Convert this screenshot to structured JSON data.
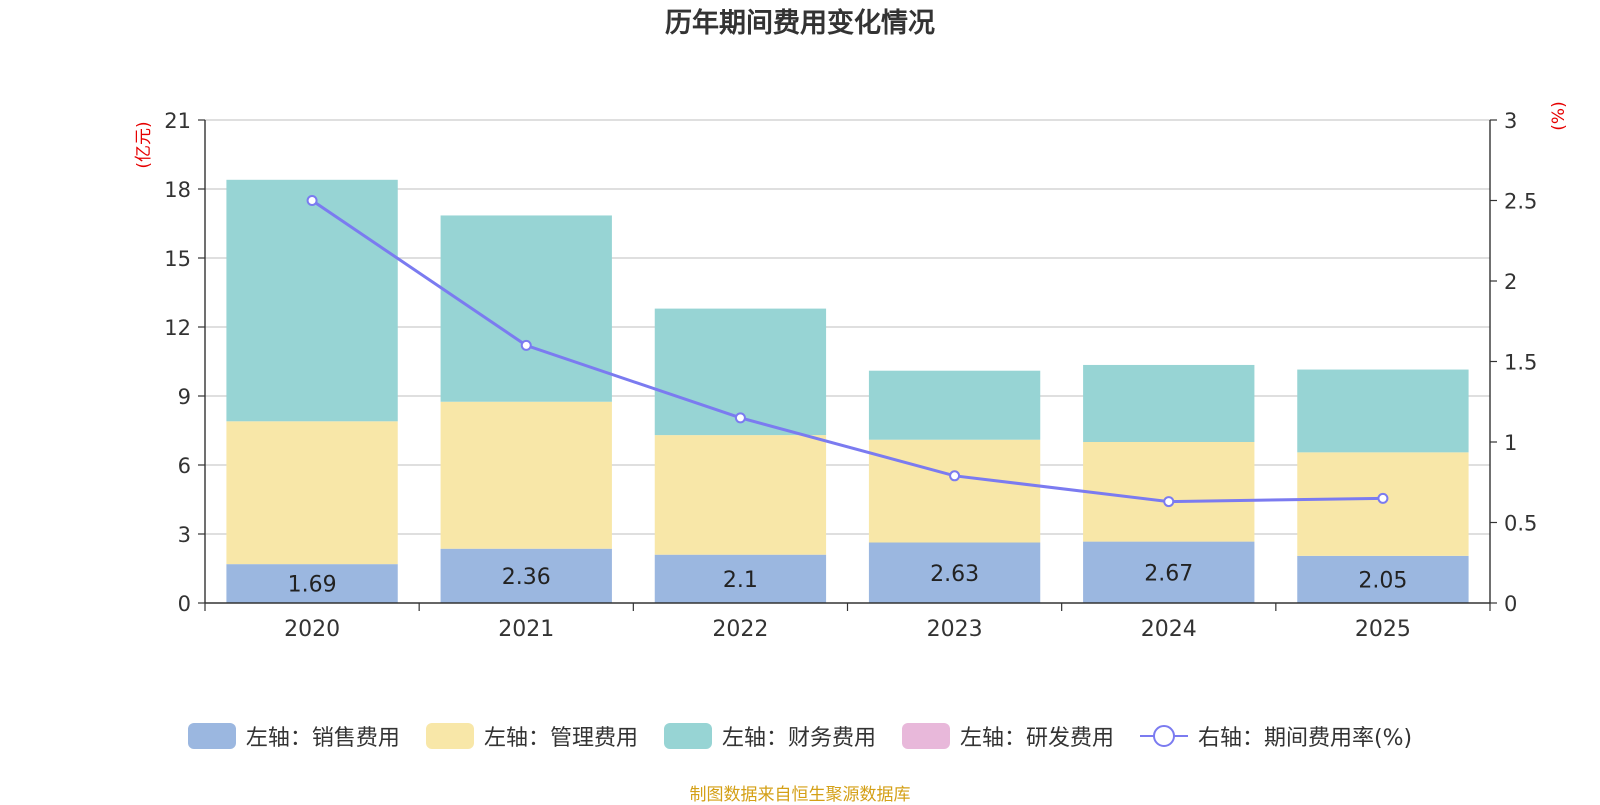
{
  "chart_data": {
    "type": "bar",
    "title": "历年期间费用变化情况",
    "categories": [
      "2020",
      "2021",
      "2022",
      "2023",
      "2024",
      "2025"
    ],
    "left_axis": {
      "unit": "(亿元)",
      "ylim": [
        0,
        21
      ],
      "ticks": [
        0,
        3,
        6,
        9,
        12,
        15,
        18,
        21
      ]
    },
    "right_axis": {
      "unit": "(%)",
      "ylim": [
        0,
        3
      ],
      "ticks": [
        "0",
        "0.5",
        "1",
        "1.5",
        "2",
        "2.5",
        "3"
      ]
    },
    "series": [
      {
        "name": "左轴：销售费用",
        "kind": "bar",
        "stack": "left",
        "color": "#9BB7E0",
        "values": [
          1.69,
          2.36,
          2.1,
          2.63,
          2.67,
          2.05
        ],
        "labels": [
          "1.69",
          "2.36",
          "2.1",
          "2.63",
          "2.67",
          "2.05"
        ]
      },
      {
        "name": "左轴：管理费用",
        "kind": "bar",
        "stack": "left",
        "color": "#F8E7A8",
        "values": [
          6.21,
          6.39,
          5.2,
          4.47,
          4.33,
          4.5
        ]
      },
      {
        "name": "左轴：财务费用",
        "kind": "bar",
        "stack": "left",
        "color": "#97D4D4",
        "values": [
          10.5,
          8.1,
          5.5,
          3.0,
          3.35,
          3.6
        ]
      },
      {
        "name": "左轴：研发费用",
        "kind": "bar",
        "stack": "left",
        "color": "#E8B8DA",
        "values": [
          0,
          0,
          0,
          0,
          0,
          0
        ]
      },
      {
        "name": "右轴：期间费用率(%)",
        "kind": "line",
        "axis": "right",
        "color": "#7B7BF0",
        "values": [
          2.5,
          1.6,
          1.15,
          0.79,
          0.63,
          0.65
        ]
      }
    ],
    "grid": true,
    "legend_position": "bottom"
  },
  "source_note": "制图数据来自恒生聚源数据库"
}
